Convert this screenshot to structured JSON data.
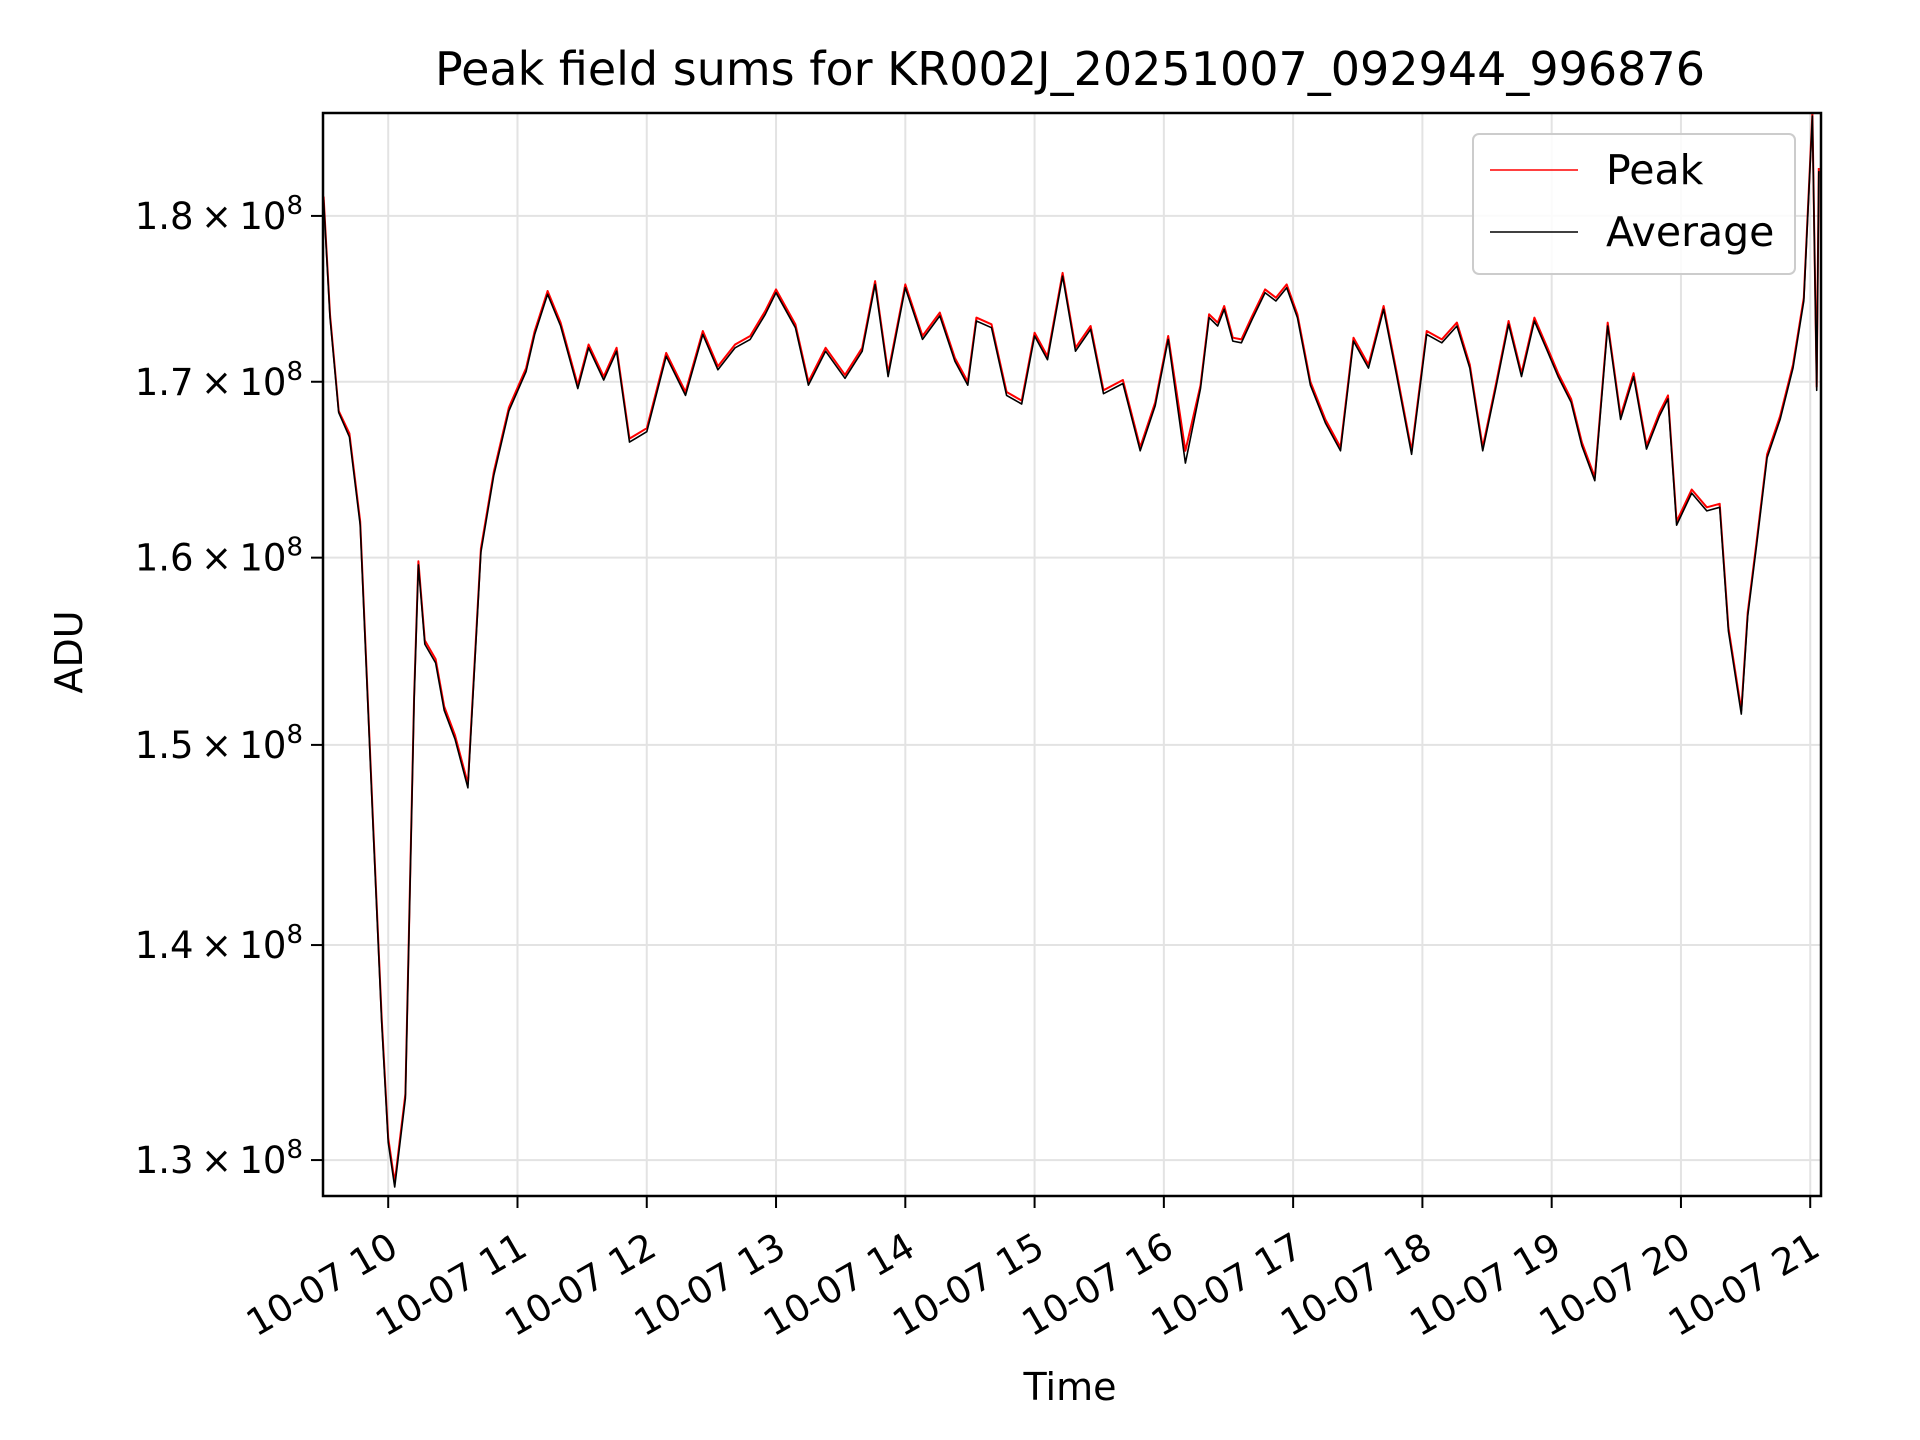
{
  "chart_data": {
    "type": "line",
    "title": "Peak field sums for KR002J_20251007_092944_996876",
    "xlabel": "Time",
    "ylabel": "ADU",
    "yscale": "log",
    "grid": true,
    "legend_position": "top-right",
    "x_ticks": [
      "10-07 10",
      "10-07 11",
      "10-07 12",
      "10-07 13",
      "10-07 14",
      "10-07 15",
      "10-07 16",
      "10-07 17",
      "10-07 18",
      "10-07 19",
      "10-07 20",
      "10-07 21"
    ],
    "y_ticks": [
      {
        "value": 130000000,
        "mantissa": "1.3",
        "exponent": "8"
      },
      {
        "value": 140000000,
        "mantissa": "1.4",
        "exponent": "8"
      },
      {
        "value": 150000000,
        "mantissa": "1.5",
        "exponent": "8"
      },
      {
        "value": 160000000,
        "mantissa": "1.6",
        "exponent": "8"
      },
      {
        "value": 170000000,
        "mantissa": "1.7",
        "exponent": "8"
      },
      {
        "value": 180000000,
        "mantissa": "1.8",
        "exponent": "8"
      }
    ],
    "tick_times_symbol": "×",
    "tick_base": "10",
    "xlim": [
      "2025-10-07T09:29:44",
      "2025-10-07T21:05:00"
    ],
    "ylim": [
      128400000,
      186500000
    ],
    "x": [
      "2025-10-07T09:30:00",
      "2025-10-07T09:33:00",
      "2025-10-07T09:37:00",
      "2025-10-07T09:42:00",
      "2025-10-07T09:47:00",
      "2025-10-07T09:53:00",
      "2025-10-07T09:57:00",
      "2025-10-07T10:00:00",
      "2025-10-07T10:03:00",
      "2025-10-07T10:08:00",
      "2025-10-07T10:12:00",
      "2025-10-07T10:14:00",
      "2025-10-07T10:17:00",
      "2025-10-07T10:22:00",
      "2025-10-07T10:26:00",
      "2025-10-07T10:31:00",
      "2025-10-07T10:37:00",
      "2025-10-07T10:43:00",
      "2025-10-07T10:49:00",
      "2025-10-07T10:56:00",
      "2025-10-07T11:04:00",
      "2025-10-07T11:08:00",
      "2025-10-07T11:14:00",
      "2025-10-07T11:20:00",
      "2025-10-07T11:28:00",
      "2025-10-07T11:33:00",
      "2025-10-07T11:40:00",
      "2025-10-07T11:46:00",
      "2025-10-07T11:52:00",
      "2025-10-07T12:00:00",
      "2025-10-07T12:09:00",
      "2025-10-07T12:18:00",
      "2025-10-07T12:26:00",
      "2025-10-07T12:33:00",
      "2025-10-07T12:41:00",
      "2025-10-07T12:48:00",
      "2025-10-07T12:55:00",
      "2025-10-07T13:00:00",
      "2025-10-07T13:09:00",
      "2025-10-07T13:15:00",
      "2025-10-07T13:23:00",
      "2025-10-07T13:32:00",
      "2025-10-07T13:40:00",
      "2025-10-07T13:46:00",
      "2025-10-07T13:52:00",
      "2025-10-07T14:00:00",
      "2025-10-07T14:08:00",
      "2025-10-07T14:16:00",
      "2025-10-07T14:23:00",
      "2025-10-07T14:29:00",
      "2025-10-07T14:33:00",
      "2025-10-07T14:40:00",
      "2025-10-07T14:47:00",
      "2025-10-07T14:54:00",
      "2025-10-07T15:00:00",
      "2025-10-07T15:06:00",
      "2025-10-07T15:13:00",
      "2025-10-07T15:19:00",
      "2025-10-07T15:26:00",
      "2025-10-07T15:32:00",
      "2025-10-07T15:41:00",
      "2025-10-07T15:49:00",
      "2025-10-07T15:56:00",
      "2025-10-07T16:02:00",
      "2025-10-07T16:10:00",
      "2025-10-07T16:17:00",
      "2025-10-07T16:21:00",
      "2025-10-07T16:25:00",
      "2025-10-07T16:28:00",
      "2025-10-07T16:32:00",
      "2025-10-07T16:36:00",
      "2025-10-07T16:41:00",
      "2025-10-07T16:47:00",
      "2025-10-07T16:52:00",
      "2025-10-07T16:57:00",
      "2025-10-07T17:02:00",
      "2025-10-07T17:08:00",
      "2025-10-07T17:15:00",
      "2025-10-07T17:22:00",
      "2025-10-07T17:28:00",
      "2025-10-07T17:35:00",
      "2025-10-07T17:42:00",
      "2025-10-07T17:48:00",
      "2025-10-07T17:55:00",
      "2025-10-07T18:02:00",
      "2025-10-07T18:09:00",
      "2025-10-07T18:16:00",
      "2025-10-07T18:22:00",
      "2025-10-07T18:28:00",
      "2025-10-07T18:34:00",
      "2025-10-07T18:40:00",
      "2025-10-07T18:46:00",
      "2025-10-07T18:52:00",
      "2025-10-07T18:58:00",
      "2025-10-07T19:03:00",
      "2025-10-07T19:09:00",
      "2025-10-07T19:14:00",
      "2025-10-07T19:20:00",
      "2025-10-07T19:26:00",
      "2025-10-07T19:32:00",
      "2025-10-07T19:38:00",
      "2025-10-07T19:44:00",
      "2025-10-07T19:50:00",
      "2025-10-07T19:54:00",
      "2025-10-07T19:58:00",
      "2025-10-07T20:05:00",
      "2025-10-07T20:12:00",
      "2025-10-07T20:18:00",
      "2025-10-07T20:22:00",
      "2025-10-07T20:28:00",
      "2025-10-07T20:31:00",
      "2025-10-07T20:35:00",
      "2025-10-07T20:40:00",
      "2025-10-07T20:46:00",
      "2025-10-07T20:52:00",
      "2025-10-07T20:57:00",
      "2025-10-07T21:01:00",
      "2025-10-07T21:03:00",
      "2025-10-07T21:04:00"
    ],
    "series": [
      {
        "name": "Peak",
        "color": "#ff0000",
        "values": [
          181200000,
          174000000,
          168300000,
          167000000,
          162000000,
          146000000,
          136500000,
          131000000,
          129000000,
          133000000,
          152500000,
          159800000,
          155500000,
          154500000,
          152000000,
          150500000,
          148000000,
          160500000,
          164800000,
          168500000,
          170800000,
          173000000,
          175400000,
          173500000,
          169800000,
          172200000,
          170300000,
          172000000,
          166700000,
          167300000,
          171700000,
          169400000,
          173000000,
          170900000,
          172200000,
          172700000,
          174200000,
          175500000,
          173400000,
          170000000,
          172000000,
          170400000,
          172000000,
          176000000,
          170500000,
          175800000,
          172700000,
          174100000,
          171400000,
          170000000,
          173800000,
          173400000,
          169400000,
          168900000,
          172900000,
          171500000,
          176500000,
          172000000,
          173300000,
          169500000,
          170100000,
          166200000,
          168800000,
          172700000,
          166000000,
          169800000,
          174000000,
          173500000,
          174500000,
          172600000,
          172500000,
          173900000,
          175500000,
          175000000,
          175800000,
          174000000,
          170000000,
          167800000,
          166200000,
          172600000,
          171000000,
          174500000,
          170600000,
          166000000,
          173000000,
          172500000,
          173500000,
          171000000,
          166200000,
          169800000,
          173600000,
          170500000,
          173800000,
          172000000,
          170500000,
          169000000,
          166500000,
          164500000,
          173500000,
          168000000,
          170500000,
          166300000,
          168200000,
          169200000,
          162000000,
          163800000,
          162800000,
          163000000,
          156200000,
          151800000,
          157000000,
          160800000,
          165800000,
          168000000,
          171000000,
          175000000,
          186500000,
          169700000,
          183000000
        ]
      },
      {
        "name": "Average",
        "color": "#000000",
        "values": [
          181000000,
          173800000,
          168200000,
          166800000,
          161800000,
          145800000,
          136300000,
          130800000,
          128800000,
          132800000,
          152300000,
          159600000,
          155300000,
          154300000,
          151800000,
          150300000,
          147800000,
          160300000,
          164600000,
          168300000,
          170600000,
          172800000,
          175200000,
          173300000,
          169600000,
          172000000,
          170100000,
          171800000,
          166500000,
          167100000,
          171500000,
          169200000,
          172800000,
          170700000,
          172000000,
          172500000,
          174000000,
          175300000,
          173200000,
          169800000,
          171800000,
          170200000,
          171800000,
          175800000,
          170300000,
          175600000,
          172500000,
          173900000,
          171200000,
          169800000,
          173600000,
          173200000,
          169200000,
          168700000,
          172700000,
          171300000,
          176300000,
          171800000,
          173100000,
          169300000,
          169900000,
          166000000,
          168600000,
          172500000,
          165300000,
          169600000,
          173800000,
          173300000,
          174300000,
          172400000,
          172300000,
          173700000,
          175300000,
          174800000,
          175600000,
          173800000,
          169800000,
          167600000,
          166000000,
          172400000,
          170800000,
          174300000,
          170400000,
          165800000,
          172800000,
          172300000,
          173300000,
          170800000,
          166000000,
          169600000,
          173400000,
          170300000,
          173600000,
          171800000,
          170300000,
          168800000,
          166300000,
          164300000,
          173300000,
          167800000,
          170300000,
          166100000,
          168000000,
          169000000,
          161800000,
          163600000,
          162600000,
          162800000,
          156000000,
          151600000,
          156800000,
          160600000,
          165600000,
          167800000,
          170800000,
          174800000,
          186300000,
          169500000,
          182800000
        ]
      }
    ]
  }
}
